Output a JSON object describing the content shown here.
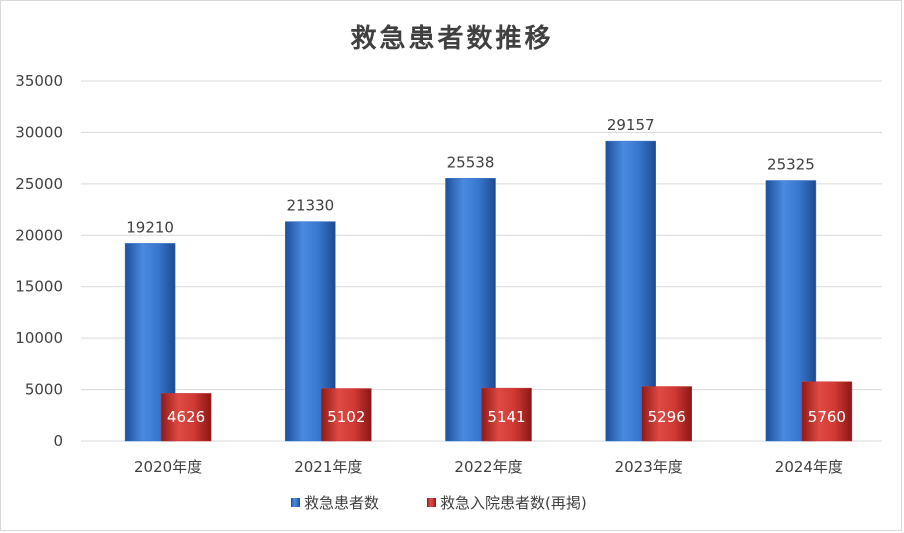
{
  "chart_data": {
    "type": "bar",
    "title": "救急患者数推移",
    "categories": [
      "2020年度",
      "2021年度",
      "2022年度",
      "2023年度",
      "2024年度"
    ],
    "series": [
      {
        "name": "救急患者数",
        "values": [
          19210,
          21330,
          25538,
          29157,
          25325
        ],
        "color": "#2f6fc9"
      },
      {
        "name": "救急入院患者数(再掲)",
        "values": [
          4626,
          5102,
          5141,
          5296,
          5760
        ],
        "color": "#c9302c"
      }
    ],
    "ylim": [
      0,
      35000
    ],
    "yticks": [
      0,
      5000,
      10000,
      15000,
      20000,
      25000,
      30000,
      35000
    ],
    "grid": true,
    "legend": "bottom"
  }
}
